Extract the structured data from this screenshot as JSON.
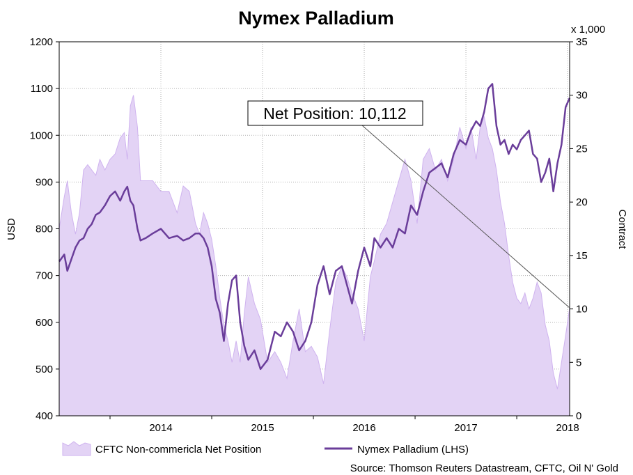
{
  "chart_data": {
    "type": "line",
    "title": "Nymex Palladium",
    "ylabel_left": "USD",
    "ylabel_right": "Contract",
    "right_multiplier": "x 1,000",
    "ylim_left": [
      400,
      1200
    ],
    "ylim_right": [
      0,
      35
    ],
    "yticks_left": [
      400,
      500,
      600,
      700,
      800,
      900,
      1000,
      1100,
      1200
    ],
    "yticks_right": [
      0,
      5,
      10,
      15,
      20,
      25,
      30,
      35
    ],
    "xlim": [
      2013.5,
      2018.52
    ],
    "xticks": [
      "2014",
      "2015",
      "2016",
      "2017",
      "2018"
    ],
    "grid": true,
    "annotation": {
      "text": "Net Position: 10,112",
      "target_x": 2018.52,
      "target_y_right": 10.1
    },
    "source": "Source: Thomson Reuters Datastream, CFTC, Oil N' Gold",
    "legend_position": "bottom",
    "colors": {
      "area_fill": "#e3d3f5",
      "area_edge": "#cfb3ef",
      "line": "#6a3d9a",
      "grid": "#b0b0b0",
      "callout_line": "#555555"
    },
    "series": [
      {
        "name": "CFTC Non-commericla Net Position",
        "type": "area",
        "axis": "right",
        "x": [
          2013.5,
          2013.55,
          2013.58,
          2013.62,
          2013.66,
          2013.7,
          2013.74,
          2013.78,
          2013.82,
          2013.86,
          2013.9,
          2013.95,
          2014.0,
          2014.05,
          2014.1,
          2014.14,
          2014.17,
          2014.2,
          2014.23,
          2014.27,
          2014.3,
          2014.35,
          2014.42,
          2014.5,
          2014.58,
          2014.66,
          2014.72,
          2014.78,
          2014.84,
          2014.88,
          2014.92,
          2014.96,
          2015.0,
          2015.04,
          2015.08,
          2015.12,
          2015.16,
          2015.2,
          2015.24,
          2015.28,
          2015.32,
          2015.36,
          2015.42,
          2015.48,
          2015.55,
          2015.62,
          2015.68,
          2015.74,
          2015.8,
          2015.86,
          2015.92,
          2015.98,
          2016.04,
          2016.1,
          2016.16,
          2016.22,
          2016.28,
          2016.33,
          2016.38,
          2016.44,
          2016.5,
          2016.56,
          2016.6,
          2016.66,
          2016.72,
          2016.78,
          2016.84,
          2016.9,
          2016.96,
          2017.02,
          2017.08,
          2017.14,
          2017.2,
          2017.26,
          2017.32,
          2017.38,
          2017.44,
          2017.5,
          2017.55,
          2017.6,
          2017.64,
          2017.68,
          2017.72,
          2017.76,
          2017.8,
          2017.84,
          2017.88,
          2017.92,
          2017.96,
          2018.0,
          2018.04,
          2018.08,
          2018.12,
          2018.16,
          2018.2,
          2018.24,
          2018.28,
          2018.32,
          2018.36,
          2018.4,
          2018.44,
          2018.48,
          2018.52
        ],
        "values": [
          17.5,
          20.5,
          22,
          19,
          17,
          19,
          23,
          23.5,
          23,
          22.5,
          24,
          23,
          24,
          24.5,
          26,
          26.5,
          24,
          29,
          30,
          27,
          22,
          22,
          22,
          21,
          21,
          19,
          21.5,
          21,
          18,
          17,
          19,
          18,
          16.5,
          14,
          11,
          8.5,
          7,
          5,
          7,
          5,
          9.5,
          13,
          10.5,
          9,
          5,
          6,
          5,
          3.5,
          7,
          10,
          6,
          6.5,
          5.5,
          3,
          8,
          12.5,
          14,
          13,
          11.5,
          10,
          7,
          13,
          14.5,
          17,
          18,
          20,
          22,
          24,
          22,
          18,
          24,
          25,
          23,
          24,
          22,
          24,
          27,
          25,
          27,
          24,
          27,
          28,
          26,
          25,
          23,
          20,
          18,
          15,
          12.5,
          11,
          10.5,
          11.5,
          10,
          11,
          12.5,
          11.5,
          8.5,
          7,
          4,
          2.5,
          5,
          7.5,
          10.1
        ]
      },
      {
        "name": "Nymex Palladium (LHS)",
        "type": "line",
        "axis": "left",
        "x": [
          2013.5,
          2013.55,
          2013.58,
          2013.62,
          2013.66,
          2013.7,
          2013.74,
          2013.78,
          2013.82,
          2013.86,
          2013.9,
          2013.95,
          2014.0,
          2014.05,
          2014.1,
          2014.14,
          2014.17,
          2014.2,
          2014.23,
          2014.27,
          2014.3,
          2014.35,
          2014.42,
          2014.5,
          2014.58,
          2014.66,
          2014.72,
          2014.78,
          2014.84,
          2014.88,
          2014.92,
          2014.96,
          2015.0,
          2015.04,
          2015.08,
          2015.12,
          2015.16,
          2015.2,
          2015.24,
          2015.28,
          2015.32,
          2015.36,
          2015.42,
          2015.48,
          2015.55,
          2015.62,
          2015.68,
          2015.74,
          2015.8,
          2015.86,
          2015.92,
          2015.98,
          2016.04,
          2016.1,
          2016.16,
          2016.22,
          2016.28,
          2016.33,
          2016.38,
          2016.44,
          2016.5,
          2016.56,
          2016.6,
          2016.66,
          2016.72,
          2016.78,
          2016.84,
          2016.9,
          2016.96,
          2017.02,
          2017.08,
          2017.14,
          2017.2,
          2017.26,
          2017.32,
          2017.38,
          2017.44,
          2017.5,
          2017.55,
          2017.6,
          2017.64,
          2017.68,
          2017.72,
          2017.76,
          2017.8,
          2017.84,
          2017.88,
          2017.92,
          2017.96,
          2018.0,
          2018.04,
          2018.08,
          2018.12,
          2018.16,
          2018.2,
          2018.24,
          2018.28,
          2018.32,
          2018.36,
          2018.4,
          2018.44,
          2018.48,
          2018.52
        ],
        "values": [
          730,
          745,
          710,
          735,
          760,
          775,
          780,
          800,
          810,
          830,
          835,
          850,
          870,
          880,
          860,
          880,
          890,
          860,
          850,
          800,
          775,
          780,
          790,
          800,
          780,
          785,
          775,
          780,
          790,
          790,
          780,
          760,
          720,
          650,
          620,
          560,
          640,
          690,
          700,
          600,
          550,
          520,
          540,
          500,
          520,
          580,
          570,
          600,
          580,
          540,
          560,
          600,
          680,
          720,
          660,
          710,
          720,
          680,
          640,
          710,
          760,
          720,
          780,
          760,
          780,
          760,
          800,
          790,
          850,
          830,
          880,
          920,
          930,
          940,
          910,
          960,
          990,
          980,
          1010,
          1030,
          1020,
          1050,
          1100,
          1110,
          1020,
          980,
          990,
          960,
          980,
          970,
          990,
          1000,
          1010,
          960,
          950,
          900,
          920,
          950,
          880,
          940,
          980,
          1060,
          1080
        ]
      }
    ]
  }
}
